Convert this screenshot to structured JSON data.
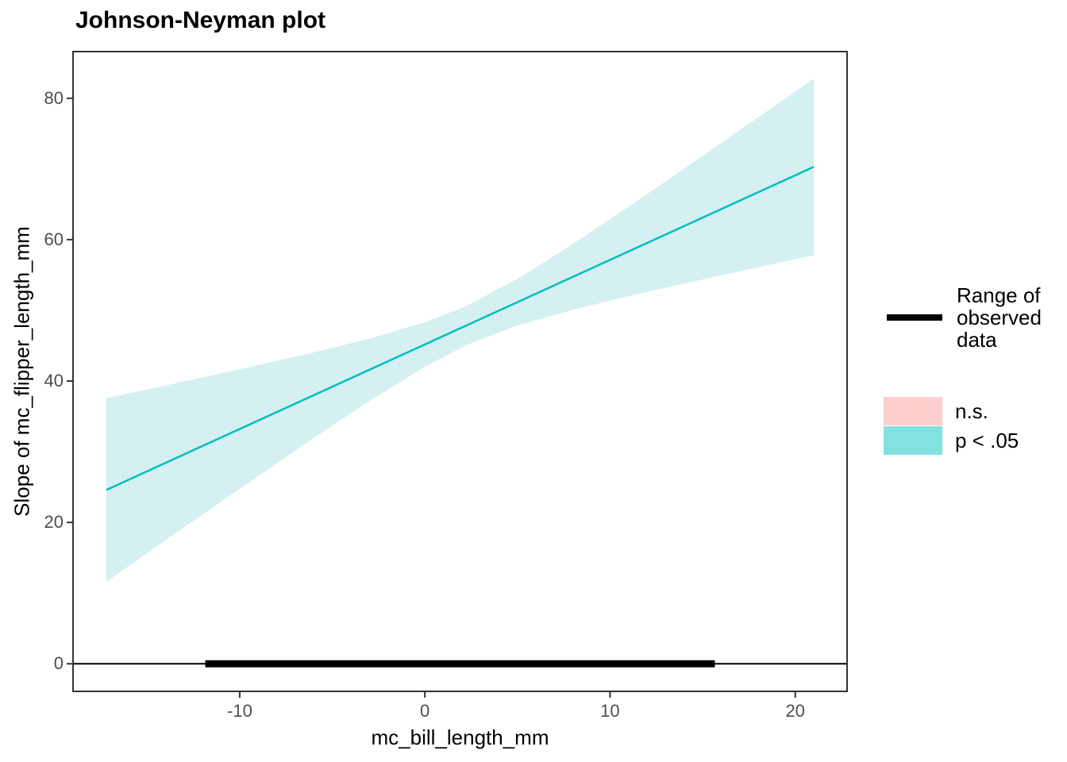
{
  "chart_data": {
    "type": "line",
    "title": "Johnson-Neyman plot",
    "xlabel": "mc_bill_length_mm",
    "ylabel": "Slope of mc_flipper_length_mm",
    "xlim": [
      -19.0,
      22.8
    ],
    "ylim": [
      -3.9,
      86.6
    ],
    "xticks": [
      -10,
      0,
      10,
      20
    ],
    "xtick_labels": [
      "-10",
      "0",
      "10",
      "20"
    ],
    "yticks": [
      0,
      20,
      40,
      60,
      80
    ],
    "ytick_labels": [
      "0",
      "20",
      "40",
      "60",
      "80"
    ],
    "grid": false,
    "legend_position": "right",
    "slope_line": {
      "x": [
        -17.2,
        21.0
      ],
      "y": [
        24.6,
        70.3
      ],
      "color": "#00BDC2"
    },
    "confidence_ribbon": {
      "x": [
        -17.2,
        -14.0,
        -10.0,
        -6.0,
        -3.0,
        0.0,
        2.27,
        5.0,
        8.0,
        11.0,
        14.0,
        17.0,
        21.0
      ],
      "upper": [
        37.57,
        39.37,
        41.66,
        44.04,
        45.99,
        48.31,
        50.65,
        54.44,
        59.39,
        64.65,
        70.03,
        75.48,
        82.78
      ],
      "lower": [
        11.63,
        17.49,
        24.76,
        31.94,
        37.17,
        42.03,
        45.11,
        47.86,
        50.09,
        52.01,
        53.79,
        55.52,
        57.8
      ],
      "fill": "#D4F0F1",
      "significance": "p < .05"
    },
    "zero_line": {
      "y": 0,
      "color": "#000000"
    },
    "observed_range_bar": {
      "x0": -11.86,
      "x1": 15.66,
      "y": 0,
      "color": "#000000"
    }
  },
  "legend": {
    "range_label": "Range of observed data",
    "items": [
      {
        "label": "n.s.",
        "color": "#FDD0CE"
      },
      {
        "label": "p < .05",
        "color": "#82E2E2"
      }
    ]
  },
  "style_colors": {
    "panel_border": "#333333",
    "tick_mark": "#333333",
    "tick_label": "#4d4d4d",
    "background": "#ffffff"
  }
}
